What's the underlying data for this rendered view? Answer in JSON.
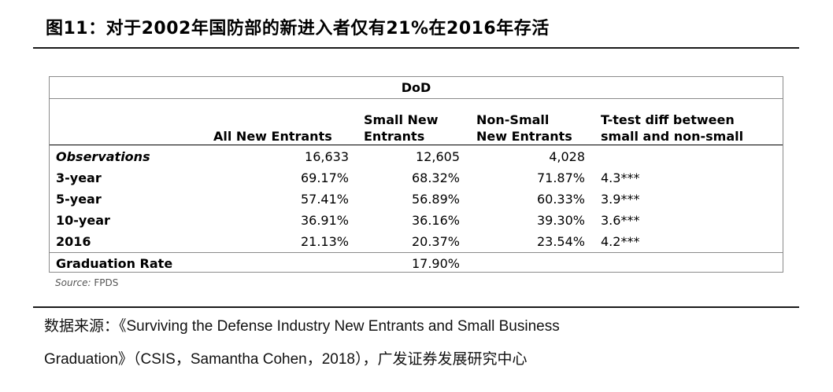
{
  "figure": {
    "title": "图11：对于2002年国防部的新进入者仅有21%在2016年存活"
  },
  "table": {
    "group_header": "DoD",
    "columns": [
      {
        "line1": "",
        "line2": "All New Entrants"
      },
      {
        "line1": "Small New",
        "line2": "Entrants"
      },
      {
        "line1": "Non-Small",
        "line2": "New Entrants"
      },
      {
        "line1": "T-test diff between",
        "line2": "small and non-small"
      }
    ],
    "rows": [
      {
        "label": "Observations",
        "values": [
          "16,633",
          "12,605",
          "4,028",
          ""
        ]
      },
      {
        "label": "3-year",
        "values": [
          "69.17%",
          "68.32%",
          "71.87%",
          "4.3***"
        ]
      },
      {
        "label": "5-year",
        "values": [
          "57.41%",
          "56.89%",
          "60.33%",
          "3.9***"
        ]
      },
      {
        "label": "10-year",
        "values": [
          "36.91%",
          "36.16%",
          "39.30%",
          "3.6***"
        ]
      },
      {
        "label": "2016",
        "values": [
          "21.13%",
          "20.37%",
          "23.54%",
          "4.2***"
        ]
      },
      {
        "label": "Graduation Rate",
        "values": [
          "",
          "17.90%",
          "",
          ""
        ]
      }
    ],
    "source_label": "Source:",
    "source_value": "FPDS"
  },
  "footer": {
    "line1": "数据来源：《Surviving the Defense Industry New Entrants and Small Business",
    "line2": "Graduation》（CSIS，Samantha Cohen，2018），广发证券发展研究中心"
  }
}
